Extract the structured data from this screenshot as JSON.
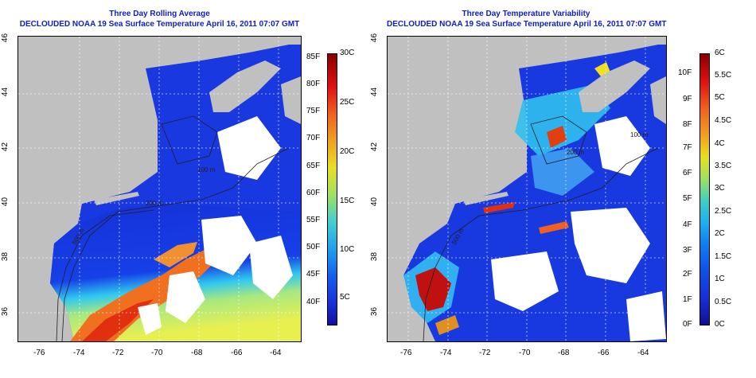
{
  "left_panel": {
    "title_line1": "Three Day Rolling Average",
    "title_line2": "DECLOUDED NOAA 19 Sea Surface Temperature April 16, 2011 07:07 GMT",
    "colorbar_f_labels": [
      "85F",
      "80F",
      "75F",
      "70F",
      "65F",
      "60F",
      "55F",
      "50F",
      "45F",
      "40F"
    ],
    "colorbar_c_labels": [
      "30C",
      "25C",
      "20C",
      "15C",
      "10C",
      "5C"
    ]
  },
  "right_panel": {
    "title_line1": "Three Day Temperature Variability",
    "title_line2": "DECLOUDED NOAA 19 Sea Surface Temperature April 16, 2011 07:07 GMT",
    "colorbar_f_labels": [
      "10F",
      "9F",
      "8F",
      "7F",
      "6F",
      "5F",
      "4F",
      "3F",
      "2F",
      "1F",
      "0F"
    ],
    "colorbar_c_labels": [
      "6C",
      "5.5C",
      "5C",
      "4.5C",
      "4C",
      "3.5C",
      "3C",
      "2.5C",
      "2C",
      "1.5C",
      "1C",
      "0.5C",
      "0C"
    ]
  },
  "axes": {
    "x_labels": [
      "-76",
      "-74",
      "-72",
      "-70",
      "-68",
      "-66",
      "-64"
    ],
    "y_labels": [
      "46",
      "44",
      "42",
      "40",
      "38",
      "36"
    ]
  },
  "colors": {
    "title": "#1020c0",
    "land": "#c0c0c0",
    "cloud": "#ffffff"
  },
  "contour_labels_left": [
    "500 m",
    "100 m",
    "200 m"
  ],
  "contour_labels_right": [
    "500 m",
    "200 m",
    "100 m"
  ]
}
